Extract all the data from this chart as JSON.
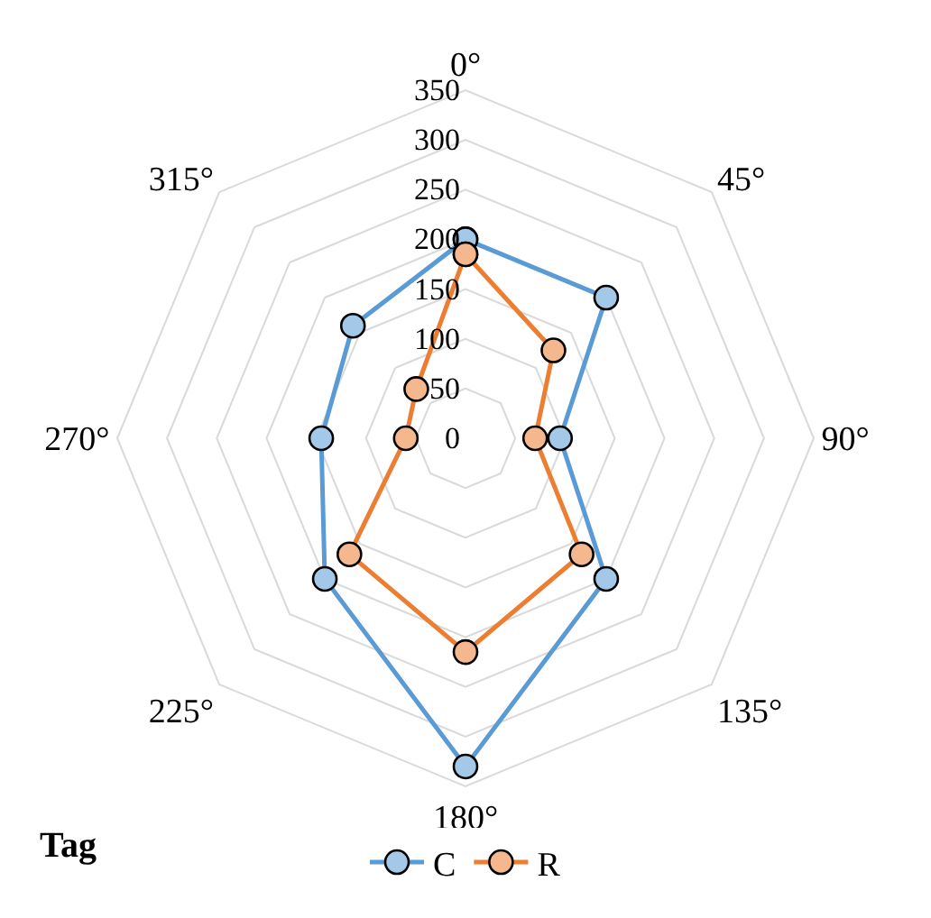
{
  "chart_data": {
    "type": "radar",
    "categories": [
      "0°",
      "45°",
      "90°",
      "135°",
      "180°",
      "225°",
      "270°",
      "315°"
    ],
    "series": [
      {
        "name": "C",
        "color": "#5b9bd5",
        "values": [
          200,
          200,
          95,
          200,
          330,
          200,
          145,
          160
        ]
      },
      {
        "name": "R",
        "color": "#ed7d31",
        "values": [
          185,
          125,
          70,
          165,
          215,
          165,
          60,
          70
        ]
      }
    ],
    "ylim": [
      0,
      350
    ],
    "yticks": [
      0,
      50,
      100,
      150,
      200,
      250,
      300,
      350
    ],
    "grid": true,
    "legend": "bottom",
    "marker": "circle",
    "line_style": "solid",
    "annotations": [
      "Tag"
    ]
  }
}
